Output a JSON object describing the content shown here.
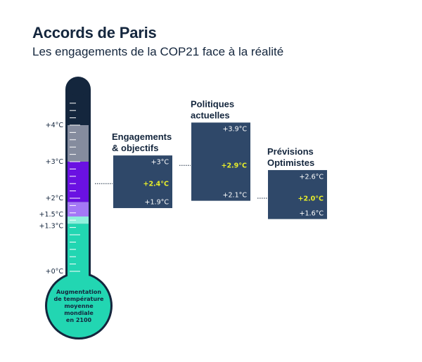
{
  "title": "Accords de Paris",
  "subtitle": "Les engagements de la COP21 face à la réalité",
  "chart_data": {
    "type": "thermometer-range",
    "axis": {
      "ticks": [
        {
          "value": 4,
          "label": "+4°C"
        },
        {
          "value": 3,
          "label": "+3°C"
        },
        {
          "value": 2,
          "label": "+2°C"
        },
        {
          "value": 1.5,
          "label": "+1.5°C"
        },
        {
          "value": 1.3,
          "label": "+1.3°C"
        },
        {
          "value": 0,
          "label": "+0°C"
        }
      ],
      "ylim": [
        0,
        5
      ]
    },
    "bands": [
      {
        "from": 0,
        "to": 1.3,
        "color": "#22d6b2"
      },
      {
        "from": 1.3,
        "to": 1.5,
        "color": "#8ff0dd"
      },
      {
        "from": 1.5,
        "to": 1.9,
        "color": "#a478f6"
      },
      {
        "from": 1.9,
        "to": 3.0,
        "color": "#6a11e2"
      },
      {
        "from": 3.0,
        "to": 4.0,
        "color": "#858c9e"
      },
      {
        "from": 4.0,
        "to": 5.0,
        "color": "#14263d"
      }
    ],
    "bulb_text": [
      "Augmentation",
      "de température",
      "moyenne",
      "mondiale",
      "en 2100"
    ],
    "groups": [
      {
        "label": [
          "Engagements",
          "& objectifs"
        ],
        "high": 3.0,
        "mid": 2.4,
        "low": 1.9,
        "values": [
          "+3°C",
          "+2.4°C",
          "+1.9°C"
        ]
      },
      {
        "label": [
          "Politiques",
          "actuelles"
        ],
        "high": 3.9,
        "mid": 2.9,
        "low": 2.1,
        "values": [
          "+3.9°C",
          "+2.9°C",
          "+2.1°C"
        ]
      },
      {
        "label": [
          "Prévisions",
          "Optimistes"
        ],
        "high": 2.6,
        "mid": 2.0,
        "low": 1.6,
        "values": [
          "+2.6°C",
          "+2.0°C",
          "+1.6°C"
        ]
      }
    ],
    "colors": {
      "box": "#2f4869",
      "highlight": "#e8ee2a",
      "outline": "#14263d"
    }
  }
}
